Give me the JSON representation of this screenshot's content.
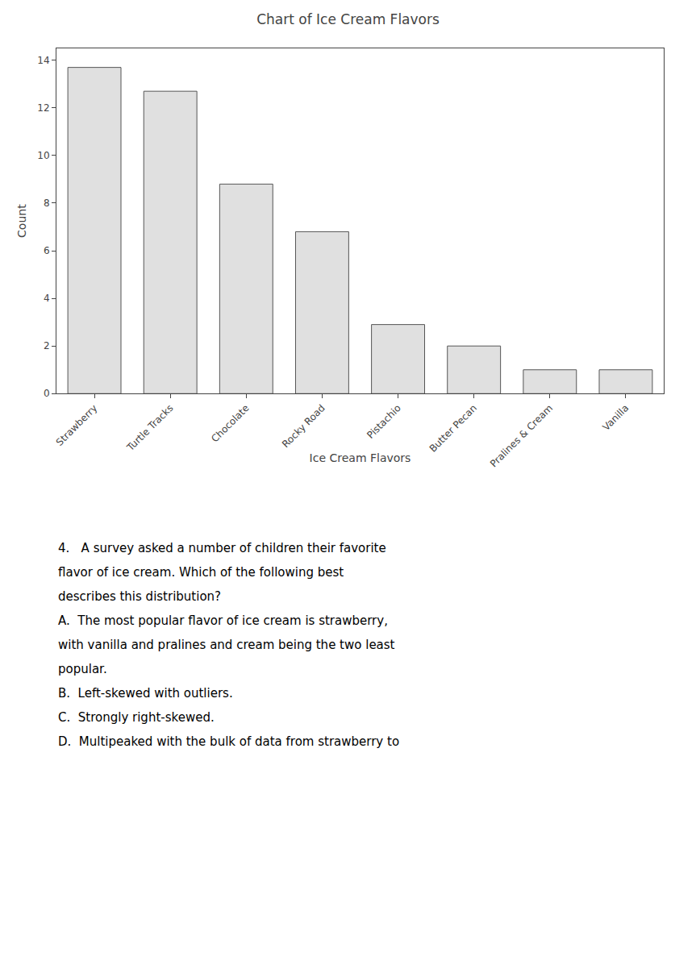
{
  "chart_data": {
    "type": "bar",
    "title": "Chart of Ice Cream Flavors",
    "xlabel": "Ice Cream Flavors",
    "ylabel": "Count",
    "categories": [
      "Strawberry",
      "Turtle Tracks",
      "Chocolate",
      "Rocky Road",
      "Pistachio",
      "Butter Pecan",
      "Pralines & Cream",
      "Vanilla"
    ],
    "values": [
      13.7,
      12.7,
      8.8,
      6.8,
      2.9,
      2.0,
      1.0,
      1.0
    ],
    "color": "#e0e0e0",
    "ylim": [
      0,
      14.5
    ],
    "yticks": [
      0,
      2,
      4,
      6,
      8,
      10,
      12,
      14
    ],
    "grid": false,
    "annotations": [
      "4.   A survey asked a number of children their favorite",
      "flavor of ice cream. Which of the following best",
      "describes this distribution?",
      "A.  The most popular flavor of ice cream is strawberry,",
      "with vanilla and pralines and cream being the two least",
      "popular.",
      "B.  Left-skewed with outliers.",
      "C.  Strongly right-skewed.",
      "D.  Multipeaked with the bulk of data from strawberry to"
    ]
  }
}
